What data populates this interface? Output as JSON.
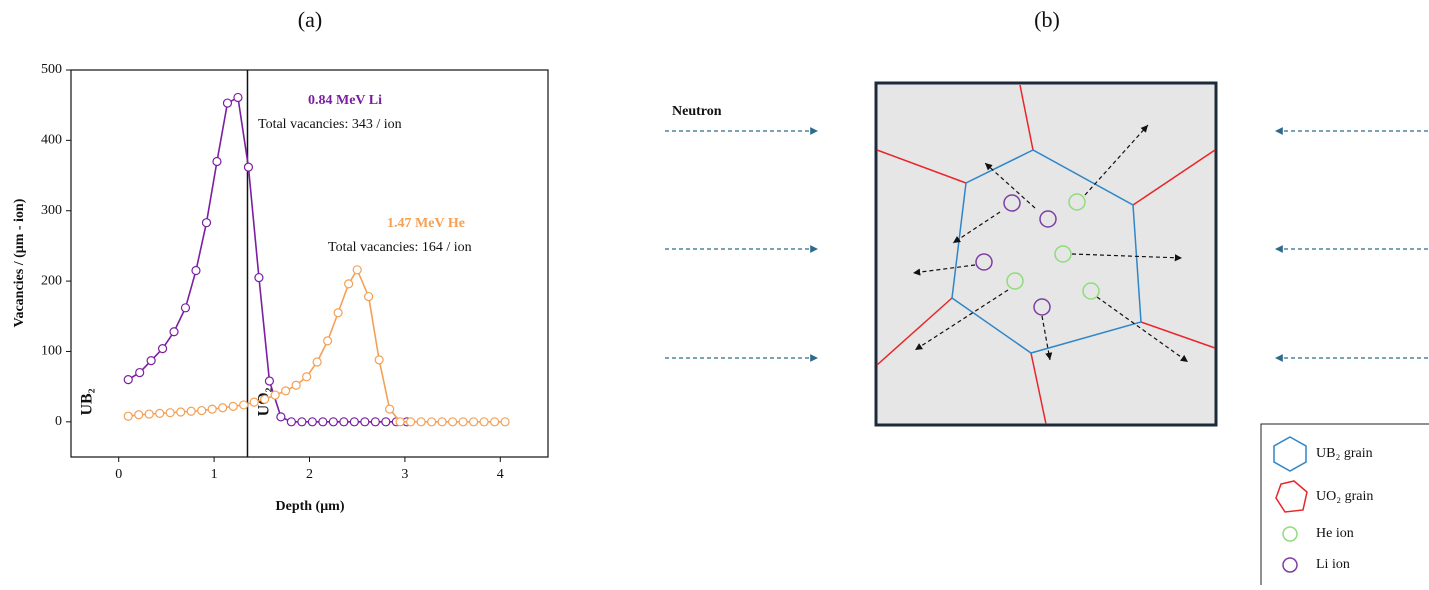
{
  "panel_labels": [
    "(a)",
    "(b)"
  ],
  "chart_data": {
    "type": "line",
    "xlabel": "Depth (μm)",
    "ylabel": "Vacancies / (μm - ion)",
    "xlim": [
      -0.5,
      4.5
    ],
    "xticks": [
      0,
      1,
      2,
      3,
      4
    ],
    "ylim": [
      -50,
      500
    ],
    "yticks": [
      0,
      100,
      200,
      300,
      400,
      500
    ],
    "vline": 1.35,
    "region_labels": [
      "UB₂",
      "UO₂"
    ],
    "annotations": [
      "Total vacancies: 343 / ion",
      "Total vacancies: 164 / ion"
    ],
    "series": [
      {
        "name": "0.84 MeV Li",
        "color": "#7b1fa2",
        "x": [
          0.1,
          0.22,
          0.34,
          0.46,
          0.58,
          0.7,
          0.81,
          0.92,
          1.03,
          1.14,
          1.25,
          1.36,
          1.47,
          1.58,
          1.7,
          1.81,
          1.92,
          2.03,
          2.14,
          2.25,
          2.36,
          2.47,
          2.58,
          2.69,
          2.8,
          2.91,
          3.02
        ],
        "values": [
          60,
          70,
          87,
          104,
          128,
          162,
          215,
          283,
          370,
          453,
          461,
          362,
          205,
          58,
          7,
          0,
          0,
          0,
          0,
          0,
          0,
          0,
          0,
          0,
          0,
          0,
          0
        ]
      },
      {
        "name": "1.47 MeV He",
        "color": "#f4a055",
        "x": [
          0.1,
          0.21,
          0.32,
          0.43,
          0.54,
          0.65,
          0.76,
          0.87,
          0.98,
          1.09,
          1.2,
          1.31,
          1.42,
          1.53,
          1.64,
          1.75,
          1.86,
          1.97,
          2.08,
          2.19,
          2.3,
          2.41,
          2.5,
          2.62,
          2.73,
          2.84,
          2.95,
          3.06,
          3.17,
          3.28,
          3.39,
          3.5,
          3.61,
          3.72,
          3.83,
          3.94,
          4.05
        ],
        "values": [
          8,
          10,
          11,
          12,
          13,
          14,
          15,
          16,
          18,
          20,
          22,
          24,
          28,
          32,
          38,
          44,
          52,
          64,
          85,
          115,
          155,
          196,
          216,
          178,
          88,
          18,
          0,
          0,
          0,
          0,
          0,
          0,
          0,
          0,
          0,
          0,
          0
        ]
      }
    ]
  },
  "diagram": {
    "source_label": "Neutron",
    "legend": [
      "UB₂ grain",
      "UO₂ grain",
      "He ion",
      "Li ion"
    ]
  }
}
